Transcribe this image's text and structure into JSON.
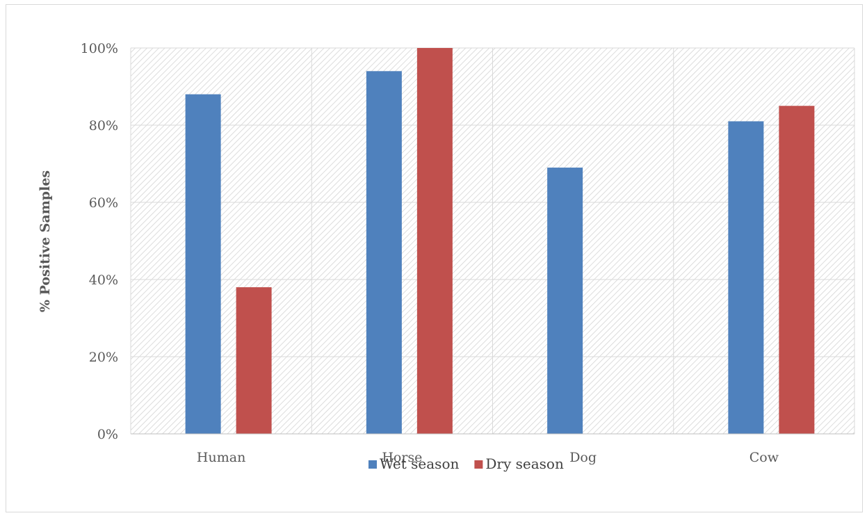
{
  "chart_data": {
    "type": "bar",
    "title": "",
    "xlabel": "",
    "ylabel": "% Positive Samples",
    "categories": [
      "Human",
      "Horse",
      "Dog",
      "Cow"
    ],
    "series": [
      {
        "name": "Wet season",
        "color": "#4F81BD",
        "values": [
          88,
          94,
          69,
          81
        ]
      },
      {
        "name": "Dry season",
        "color": "#C0504D",
        "values": [
          38,
          100,
          0,
          85
        ]
      }
    ],
    "ylim": [
      0,
      100
    ],
    "yticks": [
      0,
      20,
      40,
      60,
      80,
      100
    ],
    "tick_suffix": "%",
    "grid": true,
    "plot_background": "hatched",
    "legend_position": "bottom"
  }
}
